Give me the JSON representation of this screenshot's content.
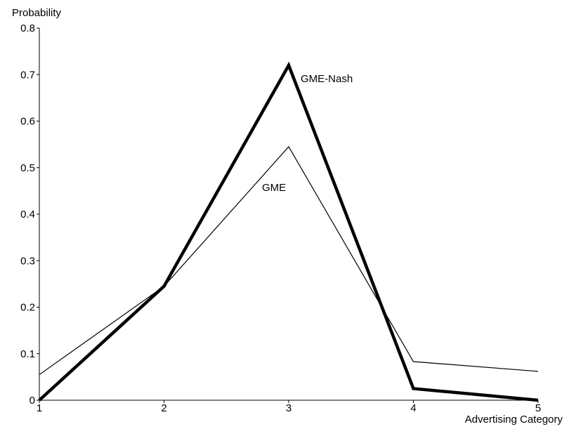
{
  "chart_data": {
    "type": "line",
    "xlabel": "Advertising Category",
    "ylabel": "Probability",
    "x": [
      1,
      2,
      3,
      4,
      5
    ],
    "xlim": [
      1,
      5
    ],
    "ylim": [
      0,
      0.8
    ],
    "yticks": [
      0,
      0.1,
      0.2,
      0.3,
      0.4,
      0.5,
      0.6,
      0.7,
      0.8
    ],
    "ytick_labels": [
      "0",
      "0.1",
      "0.2",
      "0.3",
      "0.4",
      "0.5",
      "0.6",
      "0.7",
      "0.8"
    ],
    "xtick_labels": [
      "1",
      "2",
      "3",
      "4",
      "5"
    ],
    "grid": false,
    "series": [
      {
        "name": "GME",
        "values": [
          0.055,
          0.245,
          0.545,
          0.083,
          0.062
        ],
        "color": "#000000",
        "weight": "thin"
      },
      {
        "name": "GME-Nash",
        "values": [
          0.0,
          0.245,
          0.72,
          0.025,
          0.0
        ],
        "color": "#000000",
        "weight": "bold"
      }
    ]
  }
}
